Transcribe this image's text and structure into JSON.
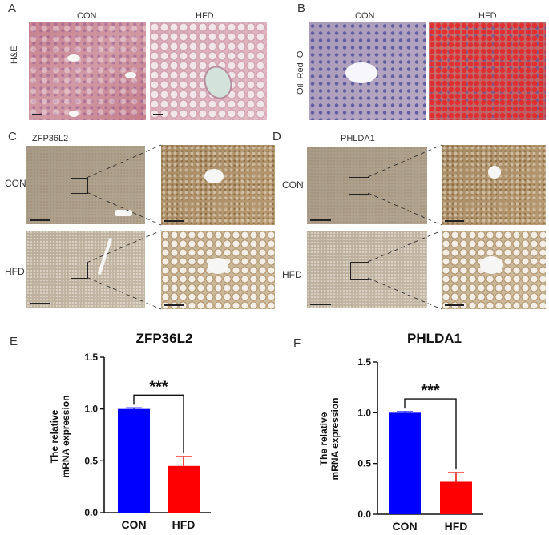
{
  "panels": {
    "A": {
      "letter": "A",
      "row_label": "H&E",
      "col_labels": [
        "CON",
        "HFD"
      ]
    },
    "B": {
      "letter": "B",
      "row_label": "Oil  Red  O",
      "col_labels": [
        "CON",
        "HFD"
      ]
    },
    "C": {
      "letter": "C",
      "gene": "ZFP36L2",
      "row_labels": [
        "CON",
        "HFD"
      ]
    },
    "D": {
      "letter": "D",
      "gene": "PHLDA1",
      "row_labels": [
        "CON",
        "HFD"
      ]
    }
  },
  "chart_data": [
    {
      "panel": "E",
      "type": "bar",
      "title": "ZFP36L2",
      "ylabel_lines": [
        "The relative",
        "mRNA expression"
      ],
      "categories": [
        "CON",
        "HFD"
      ],
      "values": [
        1.0,
        0.45
      ],
      "errors": [
        0.01,
        0.09
      ],
      "colors": [
        "#0000ff",
        "#ff0000"
      ],
      "ylim": [
        0,
        1.5
      ],
      "yticks": [
        "0.0",
        "0.5",
        "1.0",
        "1.5"
      ],
      "significance": "***"
    },
    {
      "panel": "F",
      "type": "bar",
      "title": "PHLDA1",
      "ylabel_lines": [
        "The relative",
        "mRNA expression"
      ],
      "categories": [
        "CON",
        "HFD"
      ],
      "values": [
        1.0,
        0.32
      ],
      "errors": [
        0.01,
        0.09
      ],
      "colors": [
        "#0000ff",
        "#ff0000"
      ],
      "ylim": [
        0,
        1.5
      ],
      "yticks": [
        "0.0",
        "0.5",
        "1.0",
        "1.5"
      ],
      "significance": "***"
    }
  ]
}
